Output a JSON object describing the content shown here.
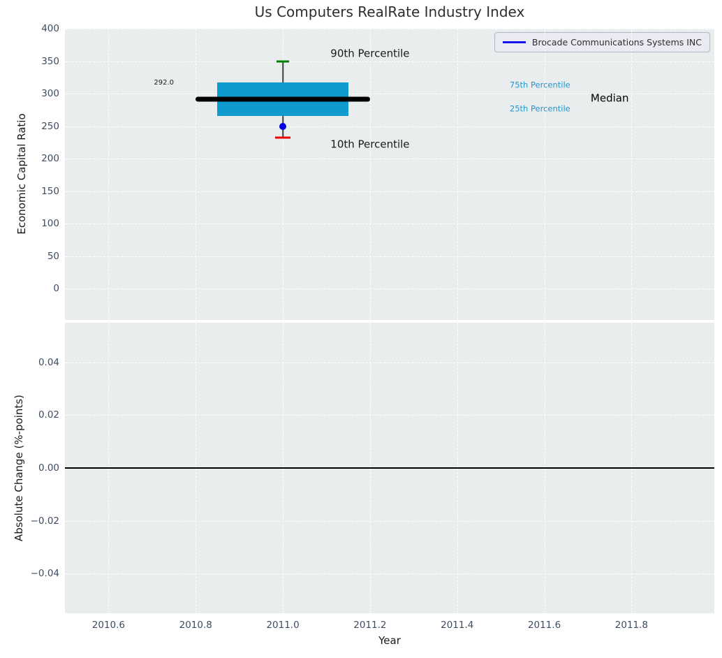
{
  "title": "Us Computers RealRate Industry Index",
  "legend": {
    "label": "Brocade Communications Systems INC",
    "line_color": "#1515f0"
  },
  "colors": {
    "box_fill": "#0f9bce",
    "p90_cap": "#008000",
    "p10_cap": "#eb0000",
    "median_line": "#000000",
    "whisker": "#3f3f3f",
    "company_point": "#0000e6",
    "zero_line": "#000000",
    "percentile_text": "#2596cb"
  },
  "chart_data": [
    {
      "type": "boxplot",
      "title": "Us Computers RealRate Industry Index",
      "ylabel": "Economic Capital Ratio",
      "xlim": [
        2010.5,
        2011.99
      ],
      "ylim": [
        -48,
        400
      ],
      "grid": true,
      "xticks": [
        2010.6,
        2010.8,
        2011.0,
        2011.2,
        2011.4,
        2011.6,
        2011.8
      ],
      "xtick_labels": [
        "2010.6",
        "2010.8",
        "2011.0",
        "2011.2",
        "2011.4",
        "2011.6",
        "2011.8"
      ],
      "show_xtick_labels": false,
      "yticks": [
        400,
        350,
        300,
        250,
        200,
        150,
        100,
        50,
        0
      ],
      "ytick_labels": [
        "400",
        "350",
        "300",
        "250",
        "200",
        "150",
        "100",
        "50",
        "0"
      ],
      "box": {
        "x": 2011.0,
        "p10": 232,
        "p25": 266,
        "median": 292,
        "p75": 317,
        "p90": 350,
        "box_left": 2010.85,
        "box_right": 2011.15,
        "median_line_left": 2010.8,
        "median_line_right": 2011.2,
        "p90_cap_width": 0.03,
        "p10_cap_width": 0.035,
        "median_label": "292.0"
      },
      "company_point": {
        "name": "Brocade Communications Systems INC",
        "x": 2011.0,
        "y": 250
      },
      "annotations": [
        {
          "text": "90th Percentile",
          "x": 2011.2,
          "y": 361,
          "color": "#1a1a1a",
          "size": 15,
          "anchor": "middle"
        },
        {
          "text": "10th Percentile",
          "x": 2011.2,
          "y": 222,
          "color": "#1a1a1a",
          "size": 15,
          "anchor": "middle"
        },
        {
          "text": "292.0",
          "x": 2010.75,
          "y": 316,
          "color": "#1a1a1a",
          "size": 10,
          "anchor": "end"
        },
        {
          "text": "75th Percentile",
          "x": 2011.59,
          "y": 313,
          "color": "#2596cb",
          "size": 11.5,
          "anchor": "middle"
        },
        {
          "text": "25th Percentile",
          "x": 2011.59,
          "y": 276,
          "color": "#2596cb",
          "size": 11.5,
          "anchor": "middle"
        },
        {
          "text": "Median",
          "x": 2011.75,
          "y": 293,
          "color": "#000000",
          "size": 15,
          "anchor": "middle"
        }
      ]
    },
    {
      "type": "line",
      "ylabel": "Absolute Change (%-points)",
      "xlabel": "Year",
      "xlim": [
        2010.5,
        2011.99
      ],
      "ylim": [
        -0.055,
        0.055
      ],
      "grid": true,
      "xticks": [
        2010.6,
        2010.8,
        2011.0,
        2011.2,
        2011.4,
        2011.6,
        2011.8
      ],
      "xtick_labels": [
        "2010.6",
        "2010.8",
        "2011.0",
        "2011.2",
        "2011.4",
        "2011.6",
        "2011.8"
      ],
      "show_xtick_labels": true,
      "yticks": [
        0.04,
        0.02,
        0.0,
        -0.02,
        -0.04
      ],
      "ytick_labels": [
        "0.04",
        "0.02",
        "0.00",
        "−0.02",
        "−0.04"
      ],
      "zero_line_y": 0.0,
      "series": [
        {
          "name": "Brocade Communications Systems INC",
          "x": [
            2010.5,
            2011.99
          ],
          "y": [
            0.0,
            0.0
          ]
        }
      ]
    }
  ]
}
